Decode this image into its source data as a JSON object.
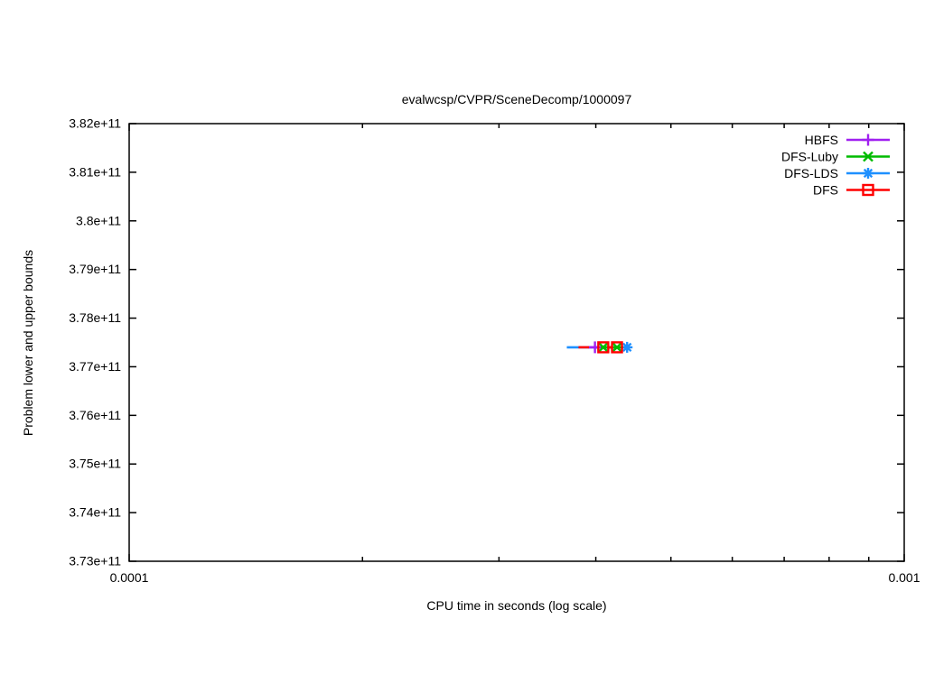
{
  "chart_data": {
    "type": "line",
    "title": "evalwcsp/CVPR/SceneDecomp/1000097",
    "xlabel": "CPU time in seconds (log scale)",
    "ylabel": "Problem lower and upper bounds",
    "x_scale": "log",
    "y_scale": "linear",
    "xlim": [
      0.0001,
      0.001
    ],
    "ylim": [
      373000000000.0,
      382000000000.0
    ],
    "grid": false,
    "legend_position": "top-right-inside",
    "x_major_ticks": [
      {
        "value": 0.0001,
        "label": "0.0001"
      },
      {
        "value": 0.001,
        "label": "0.001"
      }
    ],
    "x_minor_ticks": [
      0.0002,
      0.0003,
      0.0004,
      0.0005,
      0.0006,
      0.0007,
      0.0008,
      0.0009
    ],
    "y_ticks": [
      {
        "value": 373000000000.0,
        "label": "3.73e+11"
      },
      {
        "value": 374000000000.0,
        "label": "3.74e+11"
      },
      {
        "value": 375000000000.0,
        "label": "3.75e+11"
      },
      {
        "value": 376000000000.0,
        "label": "3.76e+11"
      },
      {
        "value": 377000000000.0,
        "label": "3.77e+11"
      },
      {
        "value": 378000000000.0,
        "label": "3.78e+11"
      },
      {
        "value": 379000000000.0,
        "label": "3.79e+11"
      },
      {
        "value": 380000000000.0,
        "label": "3.8e+11"
      },
      {
        "value": 381000000000.0,
        "label": "3.81e+11"
      },
      {
        "value": 382000000000.0,
        "label": "3.82e+11"
      }
    ],
    "legend": [
      {
        "label": "HBFS",
        "color": "#a020f0",
        "marker": "plus"
      },
      {
        "label": "DFS-Luby",
        "color": "#00bb00",
        "marker": "x"
      },
      {
        "label": "DFS-LDS",
        "color": "#1e90ff",
        "marker": "asterisk"
      },
      {
        "label": "DFS",
        "color": "#ff0000",
        "marker": "square"
      }
    ],
    "series": [
      {
        "name": "DFS-LDS",
        "color": "#1e90ff",
        "marker": "asterisk",
        "segments": [
          [
            [
              0.000367,
              377400000000.0
            ],
            [
              0.000439,
              377400000000.0
            ]
          ]
        ],
        "points": [
          [
            0.000439,
            377400000000.0
          ]
        ]
      },
      {
        "name": "DFS-Luby",
        "color": "#00bb00",
        "marker": "x",
        "segments": [
          [
            [
              0.000398,
              377400000000.0
            ],
            [
              0.000434,
              377400000000.0
            ]
          ]
        ],
        "points": [
          [
            0.000409,
            377400000000.0
          ],
          [
            0.000426,
            377400000000.0
          ]
        ]
      },
      {
        "name": "HBFS",
        "color": "#a020f0",
        "marker": "plus",
        "segments": [
          [
            [
              0.000391,
              377400000000.0
            ],
            [
              0.000406,
              377400000000.0
            ]
          ]
        ],
        "points": [
          [
            0.000399,
            377400000000.0
          ]
        ]
      },
      {
        "name": "DFS",
        "color": "#ff0000",
        "marker": "square",
        "segments": [
          [
            [
              0.00038,
              377400000000.0
            ],
            [
              0.000392,
              377400000000.0
            ]
          ],
          [
            [
              0.000415,
              377400000000.0
            ],
            [
              0.00042,
              377400000000.0
            ]
          ]
        ],
        "points": [
          [
            0.000409,
            377400000000.0
          ],
          [
            0.000426,
            377400000000.0
          ]
        ]
      }
    ]
  }
}
